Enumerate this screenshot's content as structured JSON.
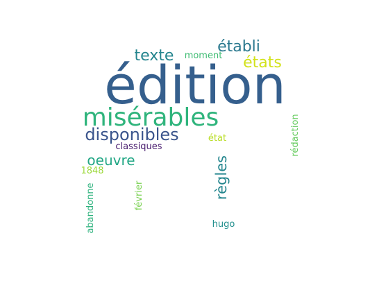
{
  "wordcloud": {
    "words": [
      {
        "text": "édition",
        "color": "#355f8d"
      },
      {
        "text": "misérables",
        "color": "#2fb47c"
      },
      {
        "text": "disponibles",
        "color": "#3a548c"
      },
      {
        "text": "établi",
        "color": "#2a788e"
      },
      {
        "text": "texte",
        "color": "#25858e"
      },
      {
        "text": "états",
        "color": "#d2e21b"
      },
      {
        "text": "moment",
        "color": "#3fbc73"
      },
      {
        "text": "oeuvre",
        "color": "#22a785"
      },
      {
        "text": "classiques",
        "color": "#481c6e"
      },
      {
        "text": "règles",
        "color": "#24868e"
      },
      {
        "text": "état",
        "color": "#bade28"
      },
      {
        "text": "rédaction",
        "color": "#65cb5e"
      },
      {
        "text": "1848",
        "color": "#9dd93b"
      },
      {
        "text": "abandonne",
        "color": "#2db27d"
      },
      {
        "text": "février",
        "color": "#7ad151"
      },
      {
        "text": "hugo",
        "color": "#218f8d"
      }
    ]
  }
}
